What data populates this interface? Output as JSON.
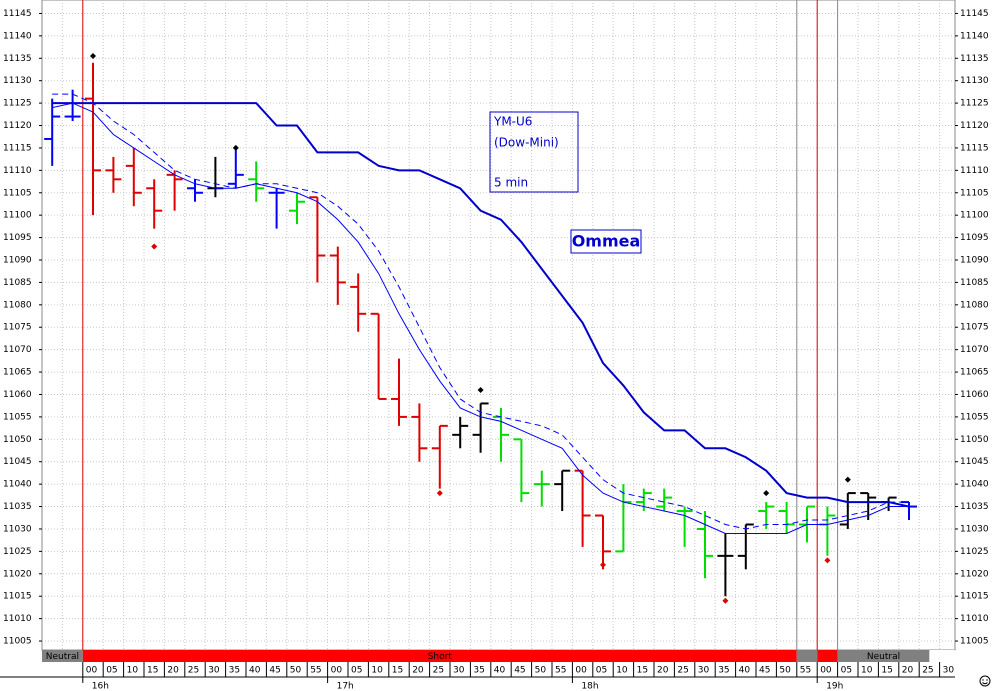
{
  "chart_data": {
    "type": "ohlc",
    "ylim": [
      11003,
      11148
    ],
    "yticks": [
      11005,
      11010,
      11015,
      11020,
      11025,
      11030,
      11035,
      11040,
      11045,
      11050,
      11055,
      11060,
      11065,
      11070,
      11075,
      11080,
      11085,
      11090,
      11095,
      11100,
      11105,
      11110,
      11115,
      11120,
      11125,
      11130,
      11135,
      11140,
      11145
    ],
    "grid": true,
    "bars": {
      "open": [
        11117,
        11122,
        11126,
        11110,
        11111,
        11106,
        11109,
        11106,
        11106,
        11107,
        11108,
        11105,
        11101,
        11104,
        11091,
        11084,
        11078,
        11059,
        11055,
        11048,
        11051,
        11051,
        11055,
        11050,
        11040,
        11040,
        11043,
        11033,
        11025,
        11036,
        11035,
        11034,
        11030,
        11024,
        11024,
        11034,
        11034,
        11031,
        11031,
        11031,
        11038,
        11036,
        11036
      ],
      "high": [
        11126,
        11128,
        11134,
        11113,
        11115,
        11108,
        11110,
        11108,
        11113,
        11115,
        11112,
        11106,
        11105,
        11104,
        11093,
        11087,
        11078,
        11068,
        11058,
        11053,
        11055,
        11058,
        11057,
        11050,
        11043,
        11043,
        11043,
        11033,
        11040,
        11039,
        11039,
        11035,
        11034,
        11029,
        11031,
        11036,
        11036,
        11035,
        11035,
        11038,
        11038,
        11037,
        11036
      ],
      "low": [
        11111,
        11121,
        11100,
        11105,
        11102,
        11097,
        11101,
        11103,
        11104,
        11106,
        11103,
        11097,
        11098,
        11085,
        11080,
        11074,
        11059,
        11053,
        11045,
        11039,
        11048,
        11047,
        11045,
        11036,
        11035,
        11034,
        11026,
        11021,
        11025,
        11034,
        11034,
        11026,
        11019,
        11015,
        11021,
        11030,
        11029,
        11027,
        11024,
        11030,
        11032,
        11034,
        11032
      ],
      "close": [
        11122,
        11122,
        11110,
        11108,
        11105,
        11101,
        11108,
        11105,
        11106,
        11109,
        11106,
        11105,
        11103,
        11091,
        11085,
        11078,
        11059,
        11055,
        11048,
        11053,
        11053,
        11058,
        11051,
        11038,
        11040,
        11043,
        11033,
        11025,
        11036,
        11038,
        11037,
        11034,
        11024,
        11024,
        11031,
        11035,
        11031,
        11035,
        11033,
        11038,
        11037,
        11037,
        11035
      ],
      "colors": [
        "#0000ff",
        "#0000ff",
        "#e00000",
        "#e00000",
        "#e00000",
        "#e00000",
        "#e00000",
        "#0000ff",
        "#000000",
        "#0000ff",
        "#00dd00",
        "#0000ff",
        "#00dd00",
        "#e00000",
        "#e00000",
        "#e00000",
        "#e00000",
        "#e00000",
        "#e00000",
        "#e00000",
        "#000000",
        "#000000",
        "#00dd00",
        "#00dd00",
        "#00dd00",
        "#000000",
        "#e00000",
        "#e00000",
        "#00dd00",
        "#00dd00",
        "#00dd00",
        "#00dd00",
        "#00dd00",
        "#000000",
        "#000000",
        "#00dd00",
        "#00dd00",
        "#00dd00",
        "#00dd00",
        "#000000",
        "#000000",
        "#000000",
        "#0000ff"
      ]
    },
    "lines": [
      {
        "color": "#0000cc",
        "style": "bold",
        "values": [
          11125,
          11125,
          11125,
          11125,
          11125,
          11125,
          11125,
          11125,
          11125,
          11125,
          11125,
          11120,
          11120,
          11114,
          11114,
          11114,
          11111,
          11110,
          11110,
          11108,
          11106,
          11101,
          11099,
          11094,
          11088,
          11082,
          11076,
          11067,
          11062,
          11056,
          11052,
          11052,
          11048,
          11048,
          11046,
          11043,
          11038,
          11037,
          11037,
          11036,
          11036,
          11036,
          11035
        ]
      },
      {
        "color": "#0000ff",
        "style": "solid",
        "values": [
          11124,
          11125,
          11123,
          11118,
          11115,
          11112,
          11109,
          11107,
          11106,
          11106,
          11107,
          11106,
          11105,
          11103,
          11099,
          11094,
          11087,
          11078,
          11070,
          11063,
          11057,
          11055,
          11054,
          11052,
          11050,
          11048,
          11042,
          11038,
          11036,
          11035,
          11034,
          11033,
          11031,
          11029,
          11029,
          11029,
          11029,
          11031,
          11031,
          11032,
          11033,
          11035,
          11035
        ]
      },
      {
        "color": "#0000ff",
        "style": "dashed",
        "values": [
          11127,
          11127,
          11125,
          11121,
          11118,
          11114,
          11110,
          11108,
          11107,
          11106,
          11107,
          11107,
          11106,
          11105,
          11102,
          11098,
          11092,
          11084,
          11075,
          11066,
          11059,
          11056,
          11055,
          11054,
          11053,
          11051,
          11046,
          11041,
          11038,
          11037,
          11036,
          11035,
          11033,
          11031,
          11030,
          11031,
          11031,
          11032,
          11032,
          11033,
          11034,
          11036,
          11036
        ]
      }
    ],
    "markers": {
      "values": [
        null,
        null,
        11135.5,
        null,
        null,
        11093,
        null,
        null,
        null,
        11115,
        null,
        null,
        null,
        null,
        null,
        null,
        null,
        null,
        null,
        11038,
        null,
        11061,
        null,
        null,
        null,
        null,
        null,
        11022,
        null,
        null,
        null,
        null,
        null,
        11014,
        null,
        11038,
        null,
        null,
        11023,
        11041,
        null,
        null,
        null
      ],
      "colors": [
        null,
        null,
        "#000000",
        null,
        null,
        "#e00000",
        null,
        null,
        null,
        "#000000",
        null,
        null,
        null,
        null,
        null,
        null,
        null,
        null,
        null,
        "#e00000",
        null,
        "#000000",
        null,
        null,
        null,
        null,
        null,
        "#e00000",
        null,
        null,
        null,
        null,
        null,
        "#e00000",
        null,
        "#000000",
        null,
        null,
        "#e00000",
        "#000000",
        null,
        null,
        null
      ]
    },
    "x_labels": [
      "00",
      "05",
      "10",
      "15",
      "20",
      "25",
      "30",
      "35",
      "40",
      "45",
      "50",
      "55",
      "00",
      "05",
      "10",
      "15",
      "20",
      "25",
      "30",
      "35",
      "40",
      "45",
      "50",
      "55",
      "00",
      "05",
      "10",
      "15",
      "20",
      "25",
      "30",
      "35",
      "40",
      "45",
      "50",
      "55",
      "00",
      "05",
      "10",
      "15",
      "20",
      "25",
      "30"
    ],
    "hour_labels": [
      "16h",
      "17h",
      "18h",
      "19h"
    ],
    "status_segments": [
      {
        "label": "Neutral",
        "color": "#808080",
        "slots": 2
      },
      {
        "label": "Short",
        "color": "#ff0000",
        "slots": 35
      },
      {
        "label": null,
        "color": "#808080",
        "slots": 1
      },
      {
        "label": null,
        "color": "#ff0000",
        "slots": 1
      },
      {
        "label": "Neutral",
        "color": "#808080",
        "slots": 4.5
      }
    ],
    "symbol_box": [
      "YM-U6",
      "(Dow-Mini)",
      "5 min"
    ],
    "brand": "Ommea"
  }
}
